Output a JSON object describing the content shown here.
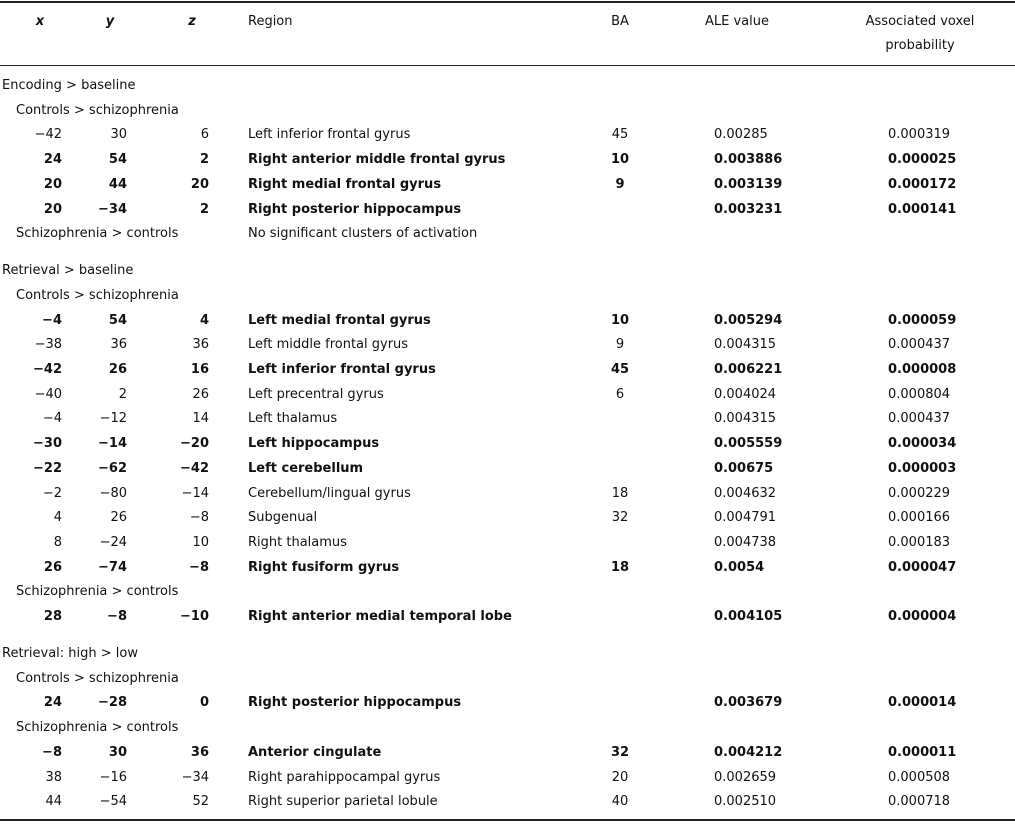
{
  "table": {
    "header": [
      "x",
      "y",
      "z",
      "Region",
      "BA",
      "ALE value",
      "Associated voxel probability"
    ],
    "rows": [
      {
        "section": "Encoding > baseline"
      },
      {
        "group": "Controls > schizophrenia"
      },
      {
        "cells": [
          "−42",
          "30",
          "6",
          "Left inferior frontal gyrus",
          "45",
          "0.00285",
          "0.000319"
        ],
        "bold": false
      },
      {
        "cells": [
          "24",
          "54",
          "2",
          "Right anterior middle frontal gyrus",
          "10",
          "0.003886",
          "0.000025"
        ],
        "bold": true
      },
      {
        "cells": [
          "20",
          "44",
          "20",
          "Right medial frontal gyrus",
          "9",
          "0.003139",
          "0.000172"
        ],
        "bold": true
      },
      {
        "cells": [
          "20",
          "−34",
          "2",
          "Right posterior hippocampus",
          null,
          "0.003231",
          "0.000141"
        ],
        "bold": true
      },
      {
        "group": "Schizophrenia > controls",
        "note": "No significant clusters of activation"
      },
      {
        "section": "Retrieval > baseline"
      },
      {
        "group": "Controls > schizophrenia"
      },
      {
        "cells": [
          "−4",
          "54",
          "4",
          "Left medial frontal gyrus",
          "10",
          "0.005294",
          "0.000059"
        ],
        "bold": true
      },
      {
        "cells": [
          "−38",
          "36",
          "36",
          "Left middle frontal gyrus",
          "9",
          "0.004315",
          "0.000437"
        ],
        "bold": false
      },
      {
        "cells": [
          "−42",
          "26",
          "16",
          "Left inferior frontal gyrus",
          "45",
          "0.006221",
          "0.000008"
        ],
        "bold": true
      },
      {
        "cells": [
          "−40",
          "2",
          "26",
          "Left precentral gyrus",
          "6",
          "0.004024",
          "0.000804"
        ],
        "bold": false
      },
      {
        "cells": [
          "−4",
          "−12",
          "14",
          "Left thalamus",
          null,
          "0.004315",
          "0.000437"
        ],
        "bold": false
      },
      {
        "cells": [
          "−30",
          "−14",
          "−20",
          "Left hippocampus",
          null,
          "0.005559",
          "0.000034"
        ],
        "bold": true
      },
      {
        "cells": [
          "−22",
          "−62",
          "−42",
          "Left cerebellum",
          null,
          "0.00675",
          "0.000003"
        ],
        "bold": true
      },
      {
        "cells": [
          "−2",
          "−80",
          "−14",
          "Cerebellum/lingual gyrus",
          "18",
          "0.004632",
          "0.000229"
        ],
        "bold": false
      },
      {
        "cells": [
          "4",
          "26",
          "−8",
          "Subgenual",
          "32",
          "0.004791",
          "0.000166"
        ],
        "bold": false
      },
      {
        "cells": [
          "8",
          "−24",
          "10",
          "Right thalamus",
          null,
          "0.004738",
          "0.000183"
        ],
        "bold": false
      },
      {
        "cells": [
          "26",
          "−74",
          "−8",
          "Right fusiform gyrus",
          "18",
          "0.0054",
          "0.000047"
        ],
        "bold": true
      },
      {
        "group": "Schizophrenia > controls"
      },
      {
        "cells": [
          "28",
          "−8",
          "−10",
          "Right anterior medial temporal lobe",
          null,
          "0.004105",
          "0.000004"
        ],
        "bold": true
      },
      {
        "section": "Retrieval: high > low"
      },
      {
        "group": "Controls > schizophrenia"
      },
      {
        "cells": [
          "24",
          "−28",
          "0",
          "Right posterior hippocampus",
          null,
          "0.003679",
          "0.000014"
        ],
        "bold": true
      },
      {
        "group": "Schizophrenia > controls"
      },
      {
        "cells": [
          "−8",
          "30",
          "36",
          "Anterior cingulate",
          "32",
          "0.004212",
          "0.000011"
        ],
        "bold": true
      },
      {
        "cells": [
          "38",
          "−16",
          "−34",
          "Right parahippocampal gyrus",
          "20",
          "0.002659",
          "0.000508"
        ],
        "bold": false
      },
      {
        "cells": [
          "44",
          "−54",
          "52",
          "Right superior parietal lobule",
          "40",
          "0.002510",
          "0.000718"
        ],
        "bold": false
      }
    ]
  }
}
